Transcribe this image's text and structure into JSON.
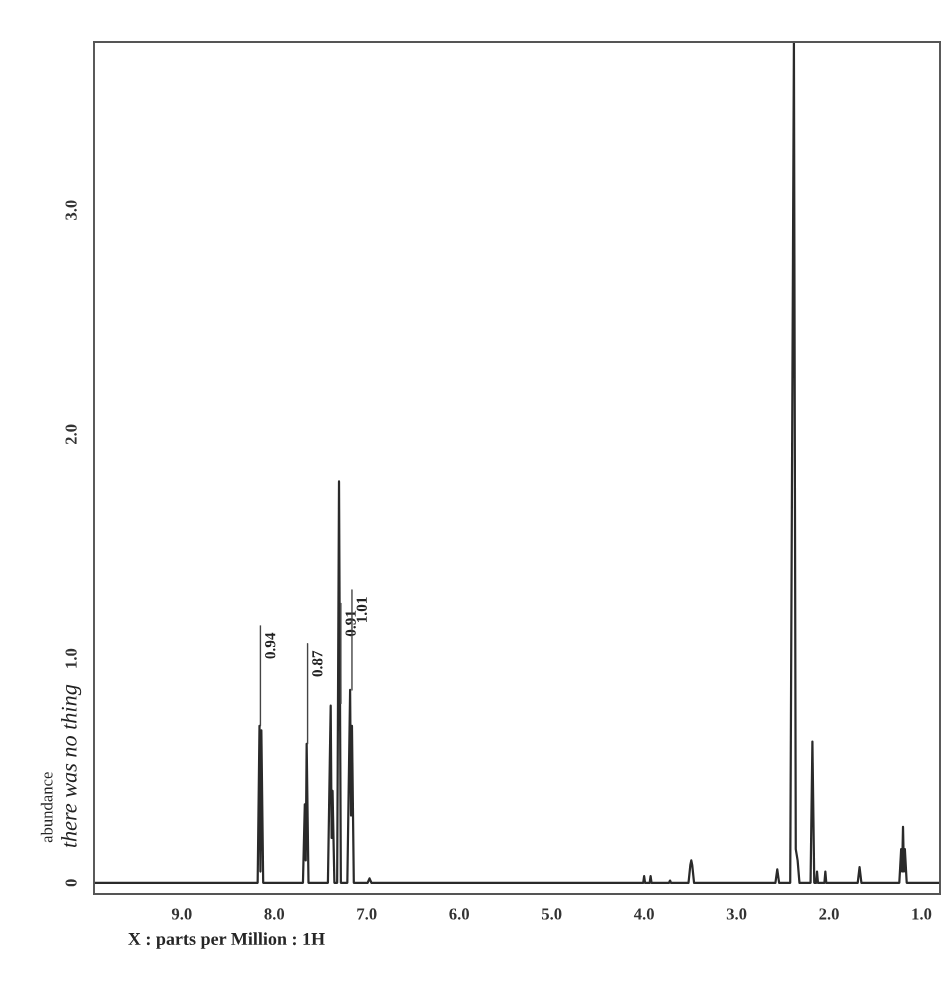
{
  "chart_data": {
    "type": "line",
    "xlabel": "X : parts per Million : 1H",
    "ylabel": "abundance",
    "x": [
      9.95,
      8.18,
      8.16,
      8.15,
      8.14,
      8.12,
      7.69,
      7.67,
      7.66,
      7.65,
      7.63,
      7.42,
      7.4,
      7.39,
      7.38,
      7.37,
      7.35,
      7.32,
      7.3,
      7.28,
      7.21,
      7.18,
      7.17,
      7.16,
      7.14,
      6.99,
      6.97,
      6.95,
      4.01,
      4.0,
      3.99,
      3.94,
      3.93,
      3.92,
      3.73,
      3.72,
      3.71,
      3.52,
      3.5,
      3.49,
      3.48,
      3.46,
      2.58,
      2.56,
      2.54,
      2.42,
      2.38,
      2.36,
      2.34,
      2.32,
      2.2,
      2.18,
      2.16,
      2.14,
      2.13,
      2.12,
      2.05,
      2.04,
      2.03,
      1.69,
      1.67,
      1.65,
      1.24,
      1.22,
      1.21,
      1.2,
      1.19,
      1.18,
      1.16,
      0.8
    ],
    "series": [
      {
        "color": "#2a2a2a",
        "values": [
          0,
          0,
          0.7,
          0.05,
          0.68,
          0,
          0,
          0.35,
          0.1,
          0.62,
          0,
          0,
          0.53,
          0.79,
          0.2,
          0.41,
          0,
          0,
          1.79,
          0,
          0,
          0.86,
          0.3,
          0.7,
          0,
          0,
          0.02,
          0,
          0,
          0.03,
          0,
          0,
          0.03,
          0,
          0,
          0.01,
          0,
          0,
          0.08,
          0.1,
          0.08,
          0,
          0,
          0.06,
          0,
          0,
          3.75,
          0.15,
          0.1,
          0,
          0,
          0.63,
          0,
          0,
          0.05,
          0,
          0,
          0.05,
          0,
          0,
          0.07,
          0,
          0,
          0.15,
          0.05,
          0.25,
          0.05,
          0.15,
          0,
          0
        ]
      }
    ],
    "xlim": [
      9.95,
      0.8
    ],
    "ylim": [
      -0.05,
      3.75
    ],
    "xticks": [
      {
        "value": 9,
        "label": "9.0"
      },
      {
        "value": 8,
        "label": "8.0"
      },
      {
        "value": 7,
        "label": "7.0"
      },
      {
        "value": 6,
        "label": "6.0"
      },
      {
        "value": 5,
        "label": "5.0"
      },
      {
        "value": 4,
        "label": "4.0"
      },
      {
        "value": 3,
        "label": "3.0"
      },
      {
        "value": 2,
        "label": "2.0"
      },
      {
        "value": 1,
        "label": "1.0"
      }
    ],
    "yticks": [
      0,
      {
        "value": 1,
        "label": "1.0"
      },
      {
        "value": 2,
        "label": "2.0"
      },
      {
        "value": 3,
        "label": "3.0"
      }
    ],
    "annotations": [
      {
        "text": "0.94",
        "x": 8.15,
        "y": 0.7
      },
      {
        "text": "0.87",
        "x": 7.64,
        "y": 0.62
      },
      {
        "text": "0.91",
        "x": 7.28,
        "y": 0.8
      },
      {
        "text": "1.01",
        "x": 7.16,
        "y": 0.86
      },
      "there was no thing"
    ]
  }
}
